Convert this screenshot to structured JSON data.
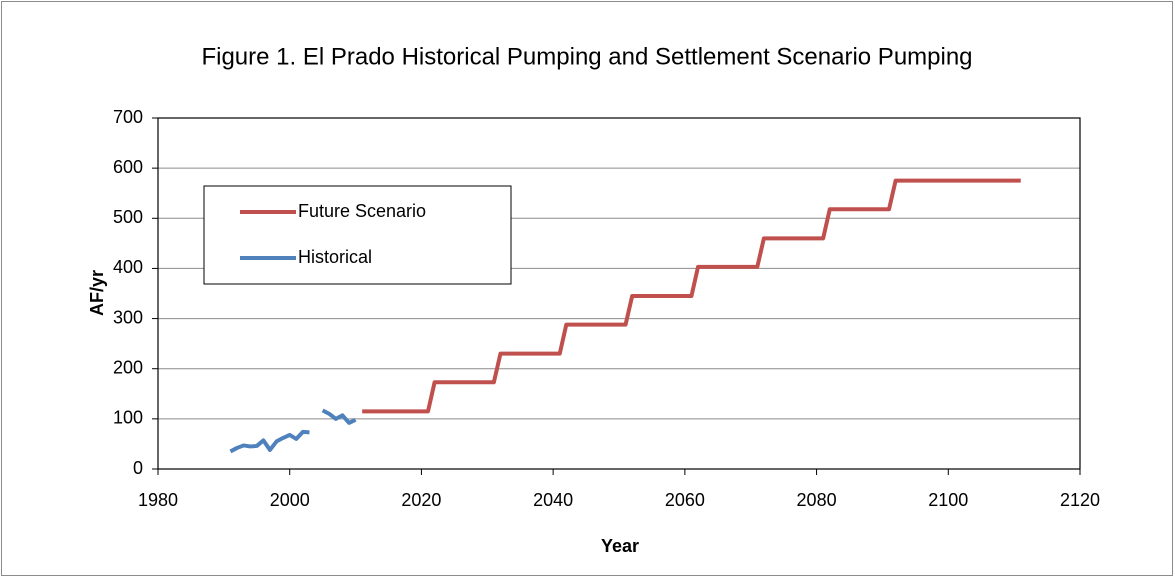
{
  "chart_data": {
    "type": "line",
    "title": "Figure 1. El Prado Historical Pumping and Settlement Scenario Pumping",
    "xlabel": "Year",
    "ylabel": "AF/yr",
    "xlim": [
      1980,
      2120
    ],
    "xticks": [
      1980,
      2000,
      2020,
      2040,
      2060,
      2080,
      2100,
      2120
    ],
    "ylim": [
      0,
      700
    ],
    "yticks": [
      0,
      100,
      200,
      300,
      400,
      500,
      600,
      700
    ],
    "grid": true,
    "legend": "upper left",
    "series": [
      {
        "name": "Future Scenario",
        "color": "#c0504d",
        "x": [
          2011,
          2021,
          2022,
          2031,
          2032,
          2041,
          2042,
          2051,
          2052,
          2061,
          2062,
          2071,
          2072,
          2081,
          2082,
          2091,
          2092,
          2111
        ],
        "values": [
          115,
          115,
          173,
          173,
          230,
          230,
          288,
          288,
          345,
          345,
          403,
          403,
          460,
          460,
          518,
          518,
          575,
          575
        ]
      },
      {
        "name": "Historical",
        "color": "#4f81bd",
        "x": [
          1991,
          1992,
          1993,
          1994,
          1995,
          1996,
          1997,
          1998,
          1999,
          2000,
          2001,
          2002,
          2003,
          2004,
          2005,
          2006,
          2007,
          2008,
          2009,
          2010
        ],
        "values": [
          35,
          42,
          47,
          45,
          46,
          57,
          38,
          55,
          62,
          68,
          60,
          74,
          73,
          null,
          117,
          110,
          100,
          107,
          92,
          98
        ]
      }
    ]
  }
}
